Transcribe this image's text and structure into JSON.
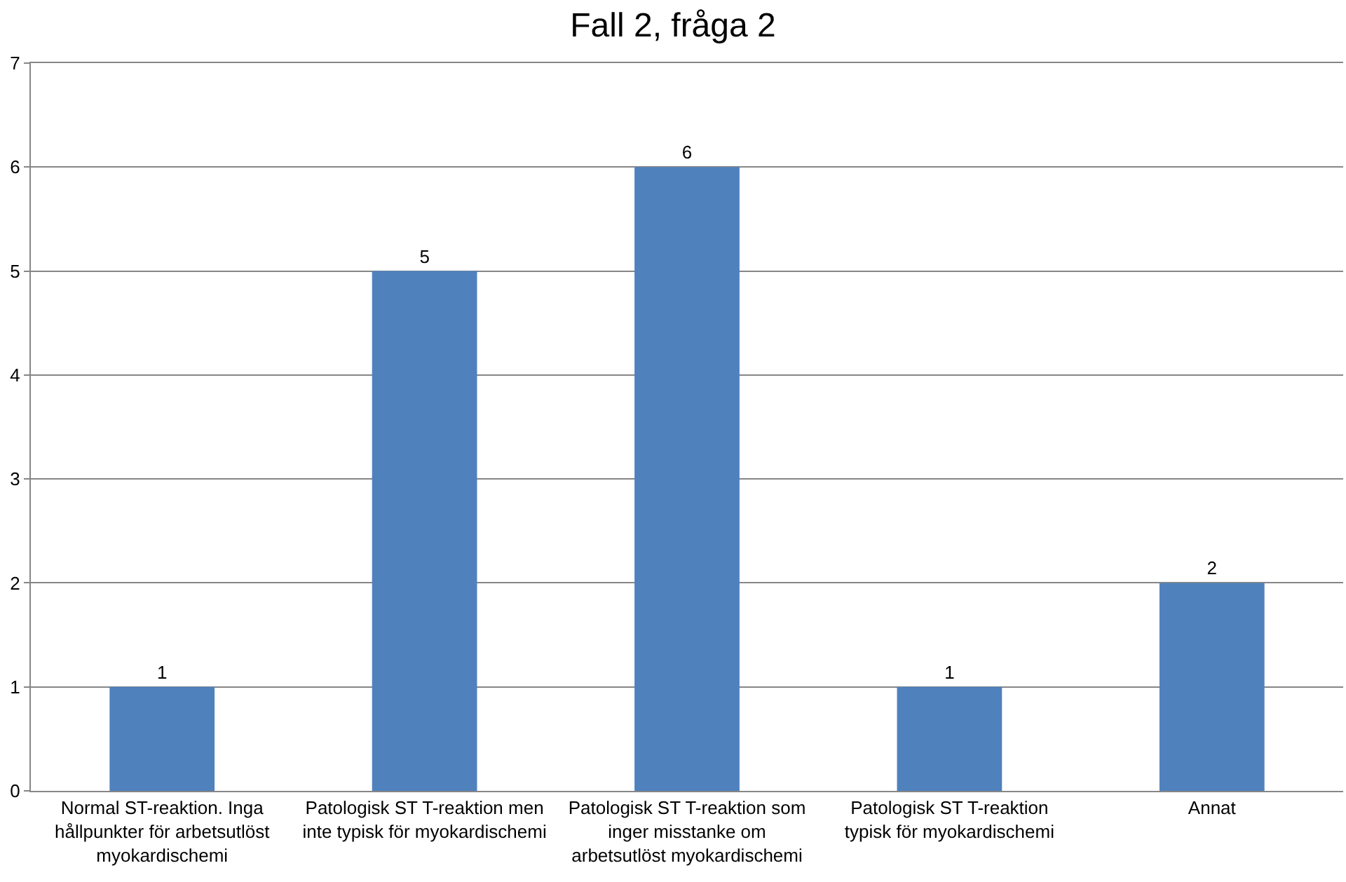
{
  "chart_data": {
    "type": "bar",
    "title": "Fall 2, fråga 2",
    "categories": [
      "Normal ST-reaktion. Inga hållpunkter för arbetsutlöst myokardischemi",
      "Patologisk ST T-reaktion men inte typisk för myokardischemi",
      "Patologisk ST T-reaktion som inger misstanke om arbetsutlöst myokardischemi",
      "Patologisk ST T-reaktion typisk för myokardischemi",
      "Annat"
    ],
    "values": [
      1,
      5,
      6,
      1,
      2
    ],
    "color": "#4f81bd",
    "ylim": [
      0,
      7
    ],
    "yticks": [
      0,
      1,
      2,
      3,
      4,
      5,
      6,
      7
    ],
    "grid": "y",
    "data_labels": true
  }
}
